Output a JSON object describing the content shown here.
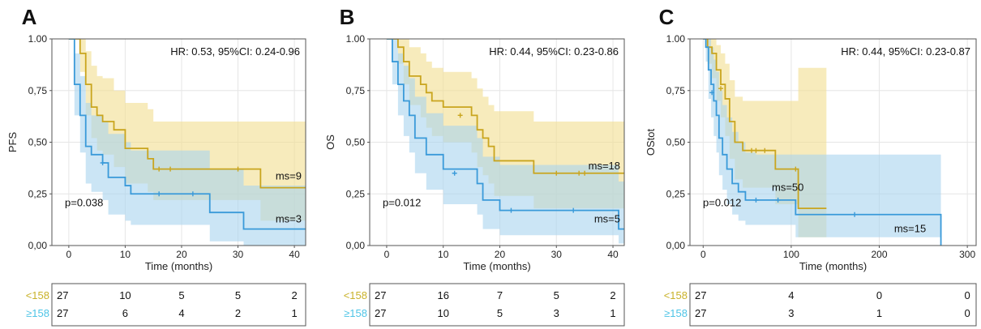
{
  "colors": {
    "low": "#c9a51e",
    "high": "#3a9ad9",
    "low_band": "#f1dd8f",
    "high_band": "#a9d4ef",
    "grid": "#e6e6e6",
    "frame": "#555555",
    "low_label": "#c9b22a",
    "high_label": "#4dc4e6"
  },
  "groups": {
    "low_label": "<158",
    "high_label": "≥158"
  },
  "chart_data": [
    {
      "panel": "A",
      "type": "line",
      "title": "",
      "xlabel": "Time (months)",
      "ylabel": "PFS",
      "xlim": [
        -3,
        42
      ],
      "ylim": [
        0,
        1
      ],
      "xticks": [
        0,
        10,
        20,
        30,
        40
      ],
      "xtick_labels": [
        "0",
        "10",
        "20",
        "30",
        "40"
      ],
      "yticks": [
        0,
        0.25,
        0.5,
        0.75,
        1
      ],
      "ytick_labels": [
        "0,00",
        "0,25",
        "0,50",
        "0,75",
        "1.00"
      ],
      "hr_text": "HR: 0.53, 95%CI: 0.24-0.96",
      "p_text": "p=0.038",
      "ms_low_text": "ms=9",
      "ms_high_text": "ms=3",
      "series": [
        {
          "group": "low",
          "x": [
            0,
            2,
            3,
            4,
            5,
            6,
            8,
            10,
            14,
            15,
            34,
            42
          ],
          "y": [
            1,
            0.93,
            0.78,
            0.67,
            0.63,
            0.6,
            0.56,
            0.47,
            0.42,
            0.37,
            0.28,
            0.28
          ],
          "upper": [
            1,
            1,
            0.94,
            0.87,
            0.82,
            0.81,
            0.75,
            0.69,
            0.66,
            0.6,
            0.6,
            0.6
          ],
          "lower": [
            1,
            0.84,
            0.63,
            0.52,
            0.46,
            0.44,
            0.38,
            0.3,
            0.26,
            0.22,
            0.12,
            0.12
          ],
          "censor_x": [
            16,
            18,
            30
          ],
          "censor_y": [
            0.37,
            0.37,
            0.37
          ]
        },
        {
          "group": "high",
          "x": [
            0,
            1,
            2,
            3,
            4,
            6,
            7,
            10,
            11,
            25,
            31,
            42
          ],
          "y": [
            1,
            0.78,
            0.63,
            0.48,
            0.44,
            0.4,
            0.33,
            0.29,
            0.25,
            0.16,
            0.08,
            0.08
          ],
          "upper": [
            1,
            0.93,
            0.82,
            0.69,
            0.63,
            0.6,
            0.54,
            0.5,
            0.46,
            0.37,
            0.29,
            0.29
          ],
          "lower": [
            1,
            0.63,
            0.45,
            0.3,
            0.26,
            0.22,
            0.15,
            0.12,
            0.1,
            0.02,
            0,
            0
          ],
          "censor_x": [
            6,
            16,
            22
          ],
          "censor_y": [
            0.4,
            0.25,
            0.25
          ]
        }
      ],
      "risk_low": [
        "27",
        "10",
        "5",
        "5",
        "2"
      ],
      "risk_high": [
        "27",
        "6",
        "4",
        "2",
        "1"
      ]
    },
    {
      "panel": "B",
      "type": "line",
      "title": "",
      "xlabel": "Time (months)",
      "ylabel": "OS",
      "xlim": [
        -3,
        42
      ],
      "ylim": [
        0,
        1
      ],
      "xticks": [
        0,
        10,
        20,
        30,
        40
      ],
      "xtick_labels": [
        "0",
        "10",
        "20",
        "30",
        "40"
      ],
      "yticks": [
        0,
        0.25,
        0.5,
        0.75,
        1
      ],
      "ytick_labels": [
        "0,00",
        "0,25",
        "0,50",
        "0,75",
        "1.00"
      ],
      "hr_text": "HR: 0.44, 95%CI: 0.23-0.86",
      "p_text": "p=0.012",
      "ms_low_text": "ms=18",
      "ms_high_text": "ms=5",
      "series": [
        {
          "group": "low",
          "x": [
            0,
            2,
            3,
            4,
            6,
            7,
            8,
            10,
            15,
            16,
            17,
            18,
            19,
            26,
            42
          ],
          "y": [
            1,
            0.96,
            0.89,
            0.82,
            0.78,
            0.74,
            0.7,
            0.67,
            0.63,
            0.56,
            0.52,
            0.48,
            0.41,
            0.35,
            0.35
          ],
          "upper": [
            1,
            1,
            1,
            0.96,
            0.93,
            0.89,
            0.86,
            0.84,
            0.81,
            0.76,
            0.72,
            0.68,
            0.65,
            0.6,
            0.6
          ],
          "lower": [
            1,
            0.88,
            0.78,
            0.68,
            0.62,
            0.57,
            0.53,
            0.5,
            0.45,
            0.38,
            0.34,
            0.3,
            0.24,
            0.18,
            0.18
          ],
          "censor_x": [
            13,
            30,
            34,
            35
          ],
          "censor_y": [
            0.63,
            0.35,
            0.35,
            0.35
          ]
        },
        {
          "group": "high",
          "x": [
            0,
            1,
            2,
            3,
            4,
            5,
            7,
            10,
            16,
            17,
            20,
            41,
            42
          ],
          "y": [
            1,
            0.89,
            0.78,
            0.7,
            0.63,
            0.52,
            0.44,
            0.37,
            0.3,
            0.22,
            0.17,
            0.08,
            0.08
          ],
          "upper": [
            1,
            1,
            0.93,
            0.87,
            0.81,
            0.72,
            0.64,
            0.58,
            0.52,
            0.43,
            0.39,
            0.31,
            0.31
          ],
          "lower": [
            1,
            0.78,
            0.63,
            0.53,
            0.45,
            0.35,
            0.27,
            0.2,
            0.15,
            0.08,
            0.05,
            0.01,
            0.01
          ],
          "censor_x": [
            12,
            22,
            33
          ],
          "censor_y": [
            0.35,
            0.17,
            0.17
          ]
        }
      ],
      "risk_low": [
        "27",
        "16",
        "7",
        "5",
        "2"
      ],
      "risk_high": [
        "27",
        "10",
        "5",
        "3",
        "1"
      ]
    },
    {
      "panel": "C",
      "type": "line",
      "title": "",
      "xlabel": "Time (months)",
      "ylabel": "OStot",
      "xlim": [
        -15,
        310
      ],
      "ylim": [
        0,
        1
      ],
      "xticks": [
        0,
        100,
        200,
        300
      ],
      "xtick_labels": [
        "0",
        "100",
        "200",
        "300"
      ],
      "yticks": [
        0,
        0.25,
        0.5,
        0.75,
        1
      ],
      "ytick_labels": [
        "0,00",
        "0,25",
        "0,50",
        "0,75",
        "1.00"
      ],
      "hr_text": "HR: 0.44, 95%CI: 0.23-0.87",
      "p_text": "p=0.012",
      "ms_low_text": "ms=50",
      "ms_high_text": "ms=15",
      "series": [
        {
          "group": "low",
          "x": [
            0,
            5,
            10,
            15,
            20,
            25,
            30,
            36,
            45,
            50,
            82,
            108,
            140
          ],
          "y": [
            1,
            0.96,
            0.93,
            0.85,
            0.78,
            0.71,
            0.6,
            0.5,
            0.46,
            0.46,
            0.37,
            0.18,
            0.18
          ],
          "upper": [
            1,
            1,
            1,
            0.97,
            0.93,
            0.88,
            0.8,
            0.72,
            0.7,
            0.7,
            0.7,
            0.86,
            0.86
          ],
          "lower": [
            1,
            0.88,
            0.81,
            0.7,
            0.62,
            0.53,
            0.42,
            0.32,
            0.28,
            0.28,
            0.2,
            0.04,
            0.04
          ],
          "censor_x": [
            20,
            55,
            60,
            70,
            105
          ],
          "censor_y": [
            0.76,
            0.46,
            0.46,
            0.46,
            0.37
          ]
        },
        {
          "group": "high",
          "x": [
            0,
            3,
            6,
            9,
            12,
            15,
            18,
            22,
            27,
            33,
            40,
            48,
            60,
            105,
            270
          ],
          "y": [
            1,
            0.96,
            0.85,
            0.78,
            0.7,
            0.63,
            0.52,
            0.44,
            0.37,
            0.3,
            0.26,
            0.22,
            0.22,
            0.15,
            0
          ],
          "upper": [
            1,
            1,
            1,
            0.96,
            0.9,
            0.84,
            0.75,
            0.68,
            0.62,
            0.55,
            0.5,
            0.45,
            0.44,
            0.44,
            0.44
          ],
          "lower": [
            1,
            0.89,
            0.71,
            0.62,
            0.53,
            0.45,
            0.34,
            0.27,
            0.2,
            0.15,
            0.12,
            0.1,
            0.1,
            0.04,
            0.04
          ],
          "censor_x": [
            10,
            60,
            85,
            172
          ],
          "censor_y": [
            0.74,
            0.22,
            0.22,
            0.15
          ]
        }
      ],
      "risk_low": [
        "27",
        "4",
        "0",
        "0"
      ],
      "risk_high": [
        "27",
        "3",
        "1",
        "0"
      ]
    }
  ]
}
